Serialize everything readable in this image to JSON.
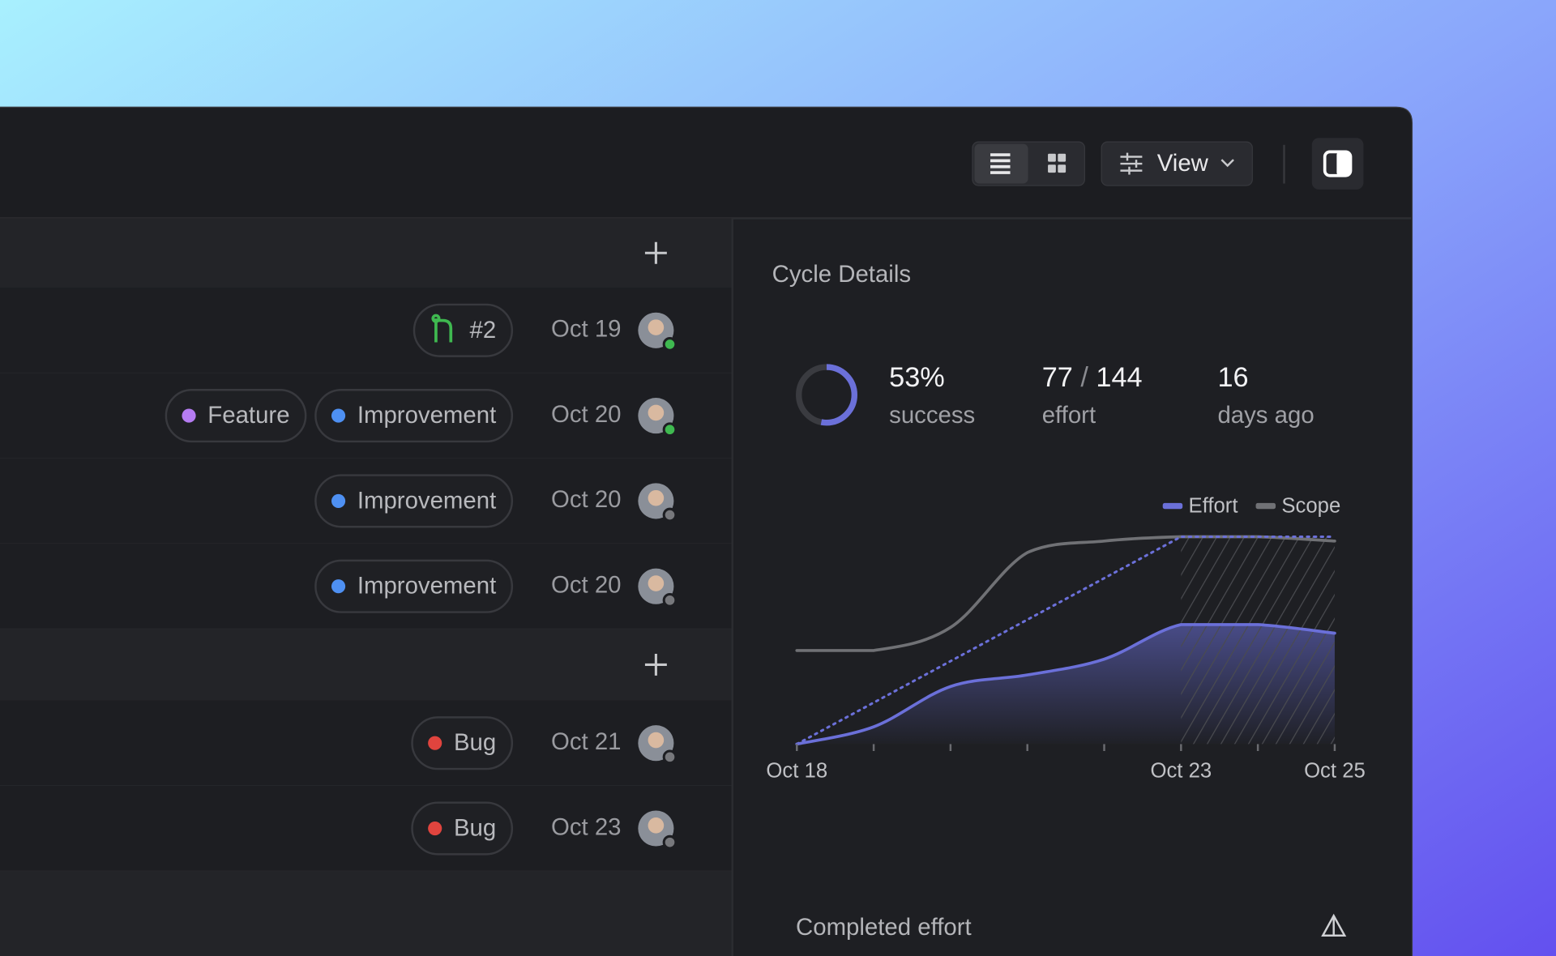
{
  "toolbar": {
    "view_label": "View"
  },
  "list": {
    "groups": [
      {
        "rows": [
          {
            "pull_request": "#2",
            "date": "Oct 19",
            "status_color": "#3fb950"
          },
          {
            "tags": [
              {
                "name": "Feature",
                "color": "#b57cf2"
              },
              {
                "name": "Improvement",
                "color": "#4e90f2"
              }
            ],
            "date": "Oct 20",
            "status_color": "#3fb950"
          },
          {
            "tags": [
              {
                "name": "Improvement",
                "color": "#4e90f2"
              }
            ],
            "date": "Oct 20",
            "status_color": "#77787c"
          },
          {
            "tags": [
              {
                "name": "Improvement",
                "color": "#4e90f2"
              }
            ],
            "date": "Oct 20",
            "status_color": "#77787c"
          }
        ]
      },
      {
        "rows": [
          {
            "tags": [
              {
                "name": "Bug",
                "color": "#e0443e"
              }
            ],
            "date": "Oct 21",
            "status_color": "#77787c"
          },
          {
            "tags": [
              {
                "name": "Bug",
                "color": "#e0443e"
              }
            ],
            "date": "Oct 23",
            "status_color": "#77787c"
          }
        ]
      }
    ]
  },
  "panel": {
    "title": "Cycle Details",
    "stats": [
      {
        "value": 53,
        "label": "53%",
        "caption": "success"
      },
      {
        "parts": [
          "77",
          "/",
          "144"
        ],
        "caption": "effort"
      },
      {
        "label": "16",
        "caption": "days ago"
      }
    ],
    "footer": "Completed effort"
  },
  "chart_data": {
    "type": "line",
    "categories": [
      "Oct 18",
      null,
      null,
      null,
      null,
      "Oct 23",
      null,
      "Oct 25"
    ],
    "series": [
      {
        "name": "Effort",
        "color": "#6b70d9",
        "fill": true,
        "values": [
          0,
          12,
          40,
          48,
          59,
          83,
          83,
          77
        ]
      },
      {
        "name": "Scope",
        "color": "#707175",
        "values": [
          65,
          65,
          81,
          133,
          141,
          144,
          144,
          141
        ]
      },
      {
        "color": "#6b70d9",
        "dash": true,
        "values": [
          0,
          28.8,
          57.6,
          86.4,
          115.2,
          144,
          144,
          144
        ]
      }
    ],
    "forecast_from": "Oct 23",
    "ylim": [
      0,
      144
    ]
  }
}
